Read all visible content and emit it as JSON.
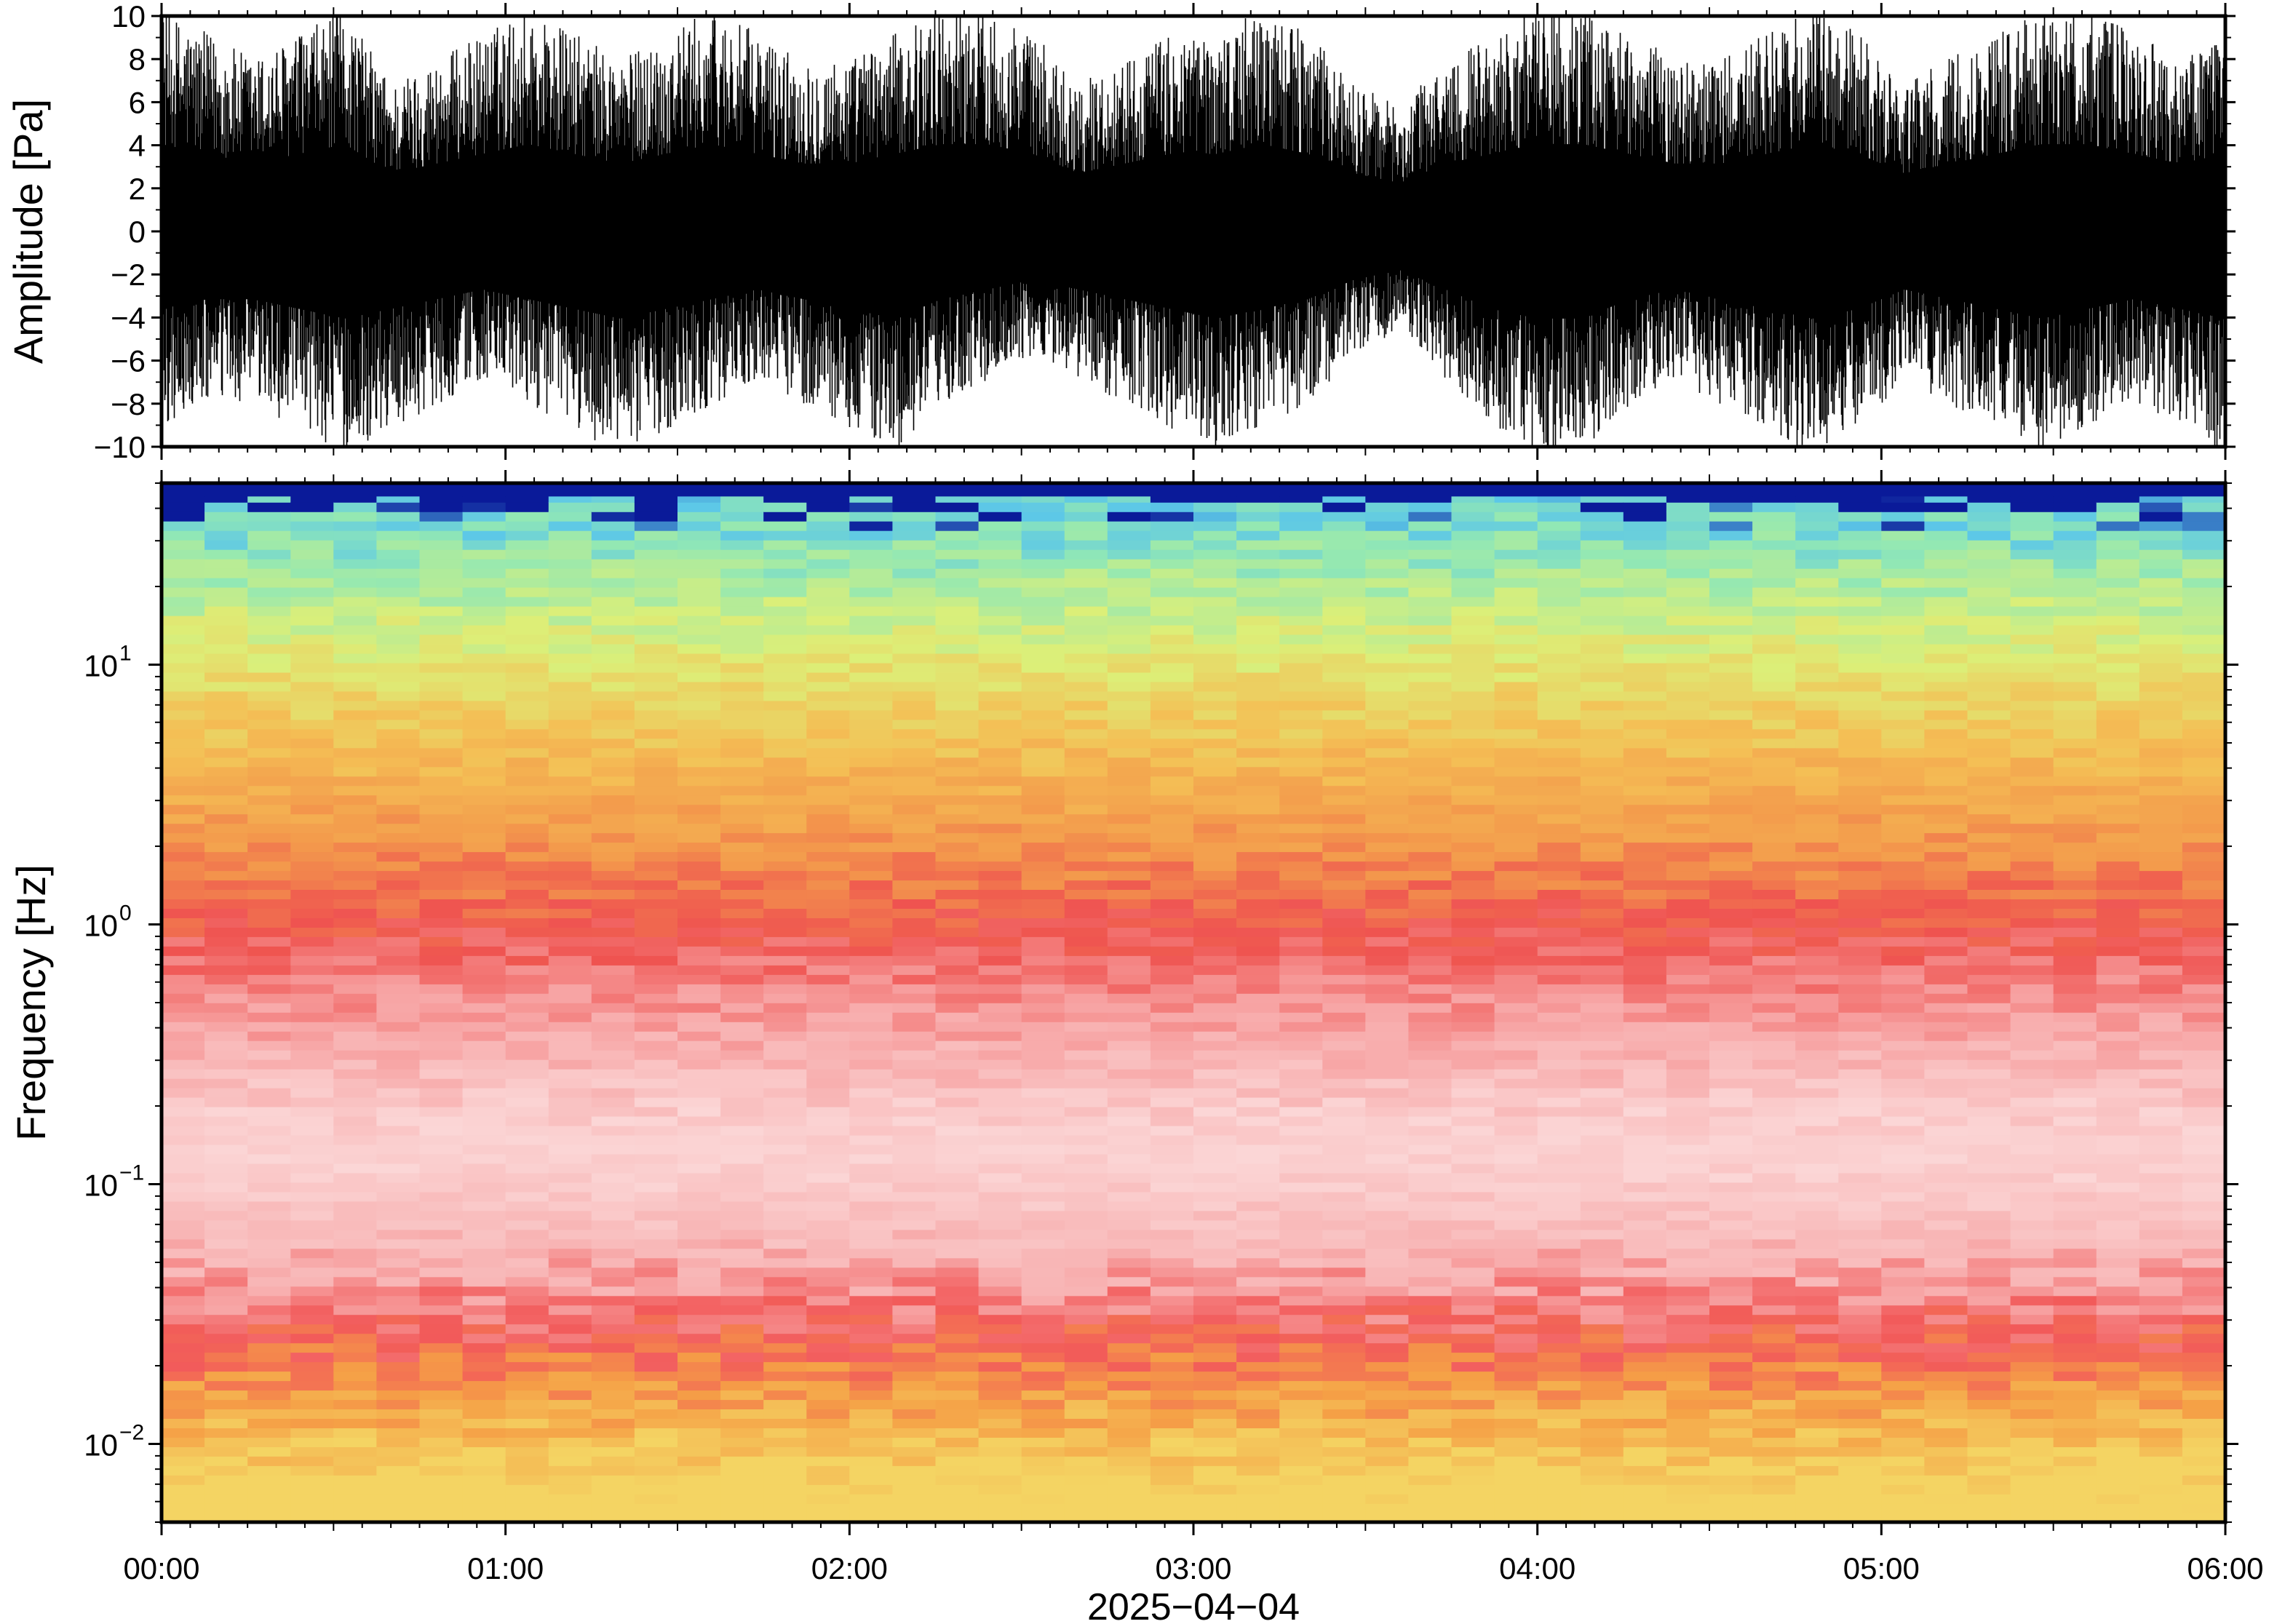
{
  "chart_data": [
    {
      "type": "line",
      "title": "",
      "xlabel": "",
      "ylabel": "Amplitude [Pa]",
      "x_range": [
        "00:00",
        "06:00"
      ],
      "ylim": [
        -10,
        10
      ],
      "y_ticks": [
        10,
        8,
        6,
        4,
        2,
        0,
        -2,
        -4,
        -6,
        -8,
        -10
      ],
      "y_tick_labels": [
        "10",
        "8",
        "6",
        "4",
        "2",
        "0",
        "−2",
        "−4",
        "−6",
        "−8",
        "−10"
      ],
      "series": [
        {
          "envelope_positive": [
            9,
            8,
            7,
            8,
            9,
            6,
            7,
            8,
            9,
            8,
            7,
            8,
            9,
            8,
            7,
            7,
            8,
            9,
            9,
            8,
            6,
            7,
            8,
            8,
            9,
            8,
            6,
            5,
            7,
            8,
            9,
            9,
            8,
            7,
            7,
            8,
            9,
            8,
            6,
            7,
            8,
            9,
            9,
            8,
            7,
            8
          ],
          "envelope_negative": [
            -8,
            -7,
            -7,
            -8,
            -9,
            -8,
            -7,
            -6,
            -7,
            -8,
            -9,
            -8,
            -7,
            -6,
            -7,
            -8,
            -9,
            -7,
            -6,
            -5,
            -6,
            -7,
            -8,
            -9,
            -8,
            -7,
            -5,
            -4,
            -6,
            -8,
            -9,
            -9,
            -7,
            -6,
            -7,
            -8,
            -9,
            -8,
            -6,
            -7,
            -8,
            -9,
            -8,
            -7,
            -8,
            -9
          ],
          "color": "#000000"
        }
      ],
      "grid": false,
      "legend": "none"
    },
    {
      "type": "heatmap",
      "title": "",
      "xlabel": "",
      "ylabel": "Frequency [Hz]",
      "x_tick_labels": [
        "00:00",
        "01:00",
        "02:00",
        "03:00",
        "04:00",
        "05:00",
        "06:00"
      ],
      "x_date_label": "2025−04−04",
      "y_scale": "log",
      "ylim": [
        0.005,
        50
      ],
      "y_ticks": [
        0.01,
        0.1,
        1,
        10
      ],
      "y_tick_mantissa": "10",
      "y_tick_exponents": [
        "−2",
        "−1",
        "0",
        "1"
      ],
      "time_bins": 48,
      "frequency_bands": [
        {
          "range_hz": [
            0.005,
            0.012
          ],
          "color": "#f4d463"
        },
        {
          "range_hz": [
            0.012,
            0.02
          ],
          "color": "#f5a046"
        },
        {
          "range_hz": [
            0.02,
            0.035
          ],
          "color": "#f25a5a"
        },
        {
          "range_hz": [
            0.035,
            0.07
          ],
          "color": "#f8b4b4"
        },
        {
          "range_hz": [
            0.07,
            0.3
          ],
          "color": "#fbd6d6"
        },
        {
          "range_hz": [
            0.3,
            0.6
          ],
          "color": "#f7a3a3"
        },
        {
          "range_hz": [
            0.6,
            1.5
          ],
          "color": "#ef5350"
        },
        {
          "range_hz": [
            1.5,
            3
          ],
          "color": "#f39a4c"
        },
        {
          "range_hz": [
            3,
            8
          ],
          "color": "#f4bf55"
        },
        {
          "range_hz": [
            8,
            20
          ],
          "color": "#dcef78"
        },
        {
          "range_hz": [
            20,
            40
          ],
          "color": "#92e8b4"
        },
        {
          "range_hz": [
            40,
            45
          ],
          "color": "#5cc7e8"
        },
        {
          "range_hz": [
            45,
            50
          ],
          "color": "#0a1a99"
        }
      ],
      "grid": false,
      "legend": "none"
    }
  ]
}
